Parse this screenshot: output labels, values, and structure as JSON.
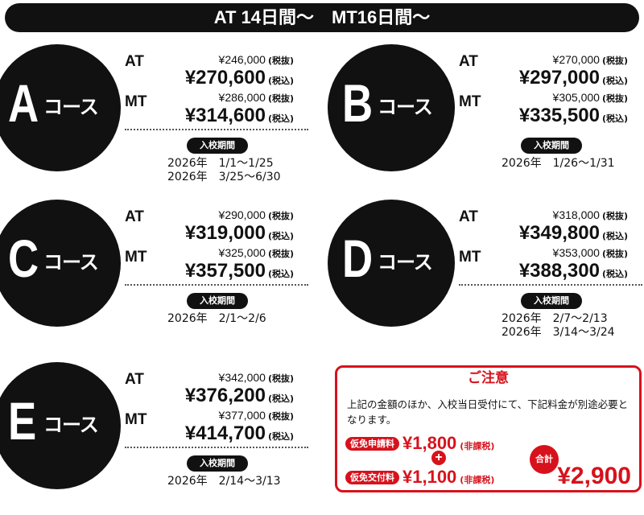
{
  "header": {
    "title": "AT 14日間～　MT16日間～"
  },
  "labels": {
    "at": "AT",
    "mt": "MT",
    "excl": "(税抜)",
    "incl": "(税込)",
    "period": "入校期間",
    "course_suffix": "コース"
  },
  "courses": [
    {
      "letter": "A",
      "at_excl": "¥246,000",
      "at_incl": "¥270,600",
      "mt_excl": "¥286,000",
      "mt_incl": "¥314,600",
      "dates": [
        "2026年　1/1～1/25",
        "2026年　3/25～6/30"
      ]
    },
    {
      "letter": "B",
      "at_excl": "¥270,000",
      "at_incl": "¥297,000",
      "mt_excl": "¥305,000",
      "mt_incl": "¥335,500",
      "dates": [
        "2026年　1/26～1/31"
      ]
    },
    {
      "letter": "C",
      "at_excl": "¥290,000",
      "at_incl": "¥319,000",
      "mt_excl": "¥325,000",
      "mt_incl": "¥357,500",
      "dates": [
        "2026年　2/1～2/6"
      ]
    },
    {
      "letter": "D",
      "at_excl": "¥318,000",
      "at_incl": "¥349,800",
      "mt_excl": "¥353,000",
      "mt_incl": "¥388,300",
      "dates": [
        "2026年　2/7～2/13",
        "2026年　3/14～3/24"
      ]
    },
    {
      "letter": "E",
      "at_excl": "¥342,000",
      "at_incl": "¥376,200",
      "mt_excl": "¥377,000",
      "mt_incl": "¥414,700",
      "dates": [
        "2026年　2/14～3/13"
      ]
    }
  ],
  "notice": {
    "title": "ご注意",
    "text": "上記の金額のほか、入校当日受付にて、下記料金が別途必要となります。",
    "fees": [
      {
        "label": "仮免申請料",
        "amount": "¥1,800",
        "note": "(非課税)"
      },
      {
        "label": "仮免交付料",
        "amount": "¥1,100",
        "note": "(非課税)"
      }
    ],
    "plus": "+",
    "sum_label": "合計",
    "total": "¥2,900"
  },
  "colors": {
    "accent": "#d7121c",
    "dark": "#111111"
  }
}
